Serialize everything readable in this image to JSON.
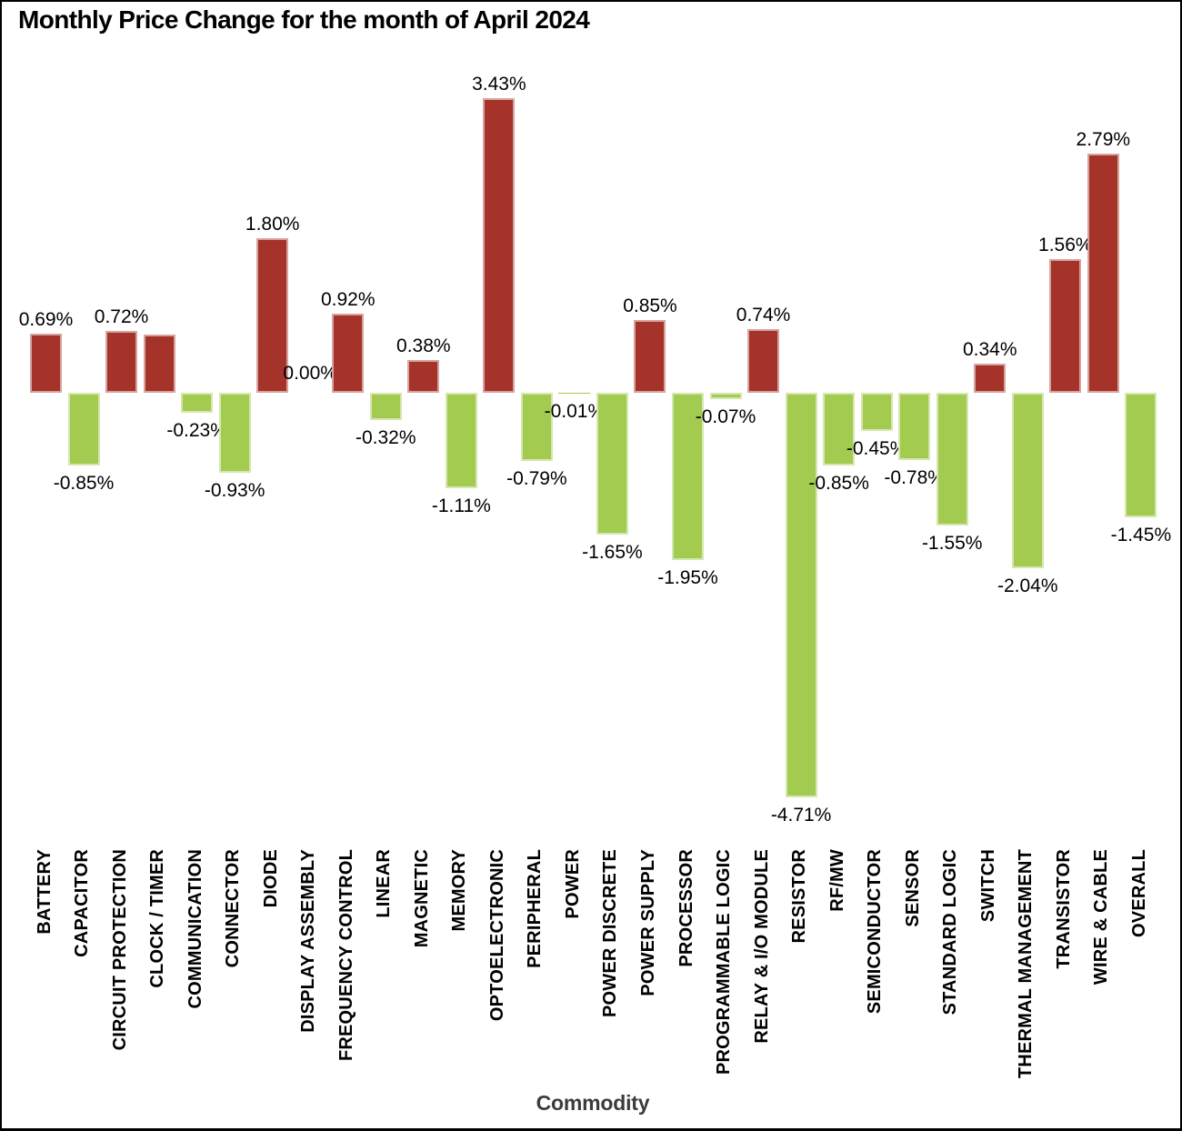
{
  "colors": {
    "positive_bar": "#A5332A",
    "negative_bar": "#A2CB50",
    "bar_outline": "rgba(255,255,255,0.55)",
    "value_label_text": "#000000",
    "axis_title_text": "#3B3B3B",
    "frame_border": "#000000"
  },
  "chart_data": {
    "type": "bar",
    "title": "Monthly Price Change for the month of April 2024",
    "xlabel": "Commodity",
    "ylabel": "",
    "ylim": [
      -5.0,
      3.8
    ],
    "grid": false,
    "legend": false,
    "value_label_position": "outside-end",
    "x_tick_rotation_degrees": 90,
    "categories": [
      "BATTERY",
      "CAPACITOR",
      "CIRCUIT PROTECTION",
      "CLOCK / TIMER",
      "COMMUNICATION",
      "CONNECTOR",
      "DIODE",
      "DISPLAY ASSEMBLY",
      "FREQUENCY CONTROL",
      "LINEAR",
      "MAGNETIC",
      "MEMORY",
      "OPTOELECTRONIC",
      "PERIPHERAL",
      "POWER",
      "POWER DISCRETE",
      "POWER SUPPLY",
      "PROCESSOR",
      "PROGRAMMABLE LOGIC",
      "RELAY & I/O MODULE",
      "RESISTOR",
      "RF/MW",
      "SEMICONDUCTOR",
      "SENSOR",
      "STANDARD LOGIC",
      "SWITCH",
      "THERMAL MANAGEMENT",
      "TRANSISTOR",
      "WIRE & CABLE",
      "OVERALL"
    ],
    "values": [
      0.69,
      -0.85,
      0.72,
      0.68,
      -0.23,
      -0.93,
      1.8,
      0.0,
      0.92,
      -0.32,
      0.38,
      -1.11,
      3.43,
      -0.79,
      -0.01,
      -1.65,
      0.85,
      -1.95,
      -0.07,
      0.74,
      -4.71,
      -0.85,
      -0.45,
      -0.78,
      -1.55,
      0.34,
      -2.04,
      1.56,
      2.79,
      -1.45
    ],
    "value_labels": [
      "0.69%",
      "-0.85%",
      "0.72%",
      "",
      "-0.23%",
      "-0.93%",
      "1.80%",
      "0.00%",
      "0.92%",
      "-0.32%",
      "0.38%",
      "-1.11%",
      "3.43%",
      "-0.79%",
      "-0.01%",
      "-1.65%",
      "0.85%",
      "-1.95%",
      "-0.07%",
      "0.74%",
      "-4.71%",
      "-0.85%",
      "-0.45%",
      "-0.78%",
      "-1.55%",
      "0.34%",
      "-2.04%",
      "1.56%",
      "2.79%",
      "-1.45%"
    ]
  }
}
